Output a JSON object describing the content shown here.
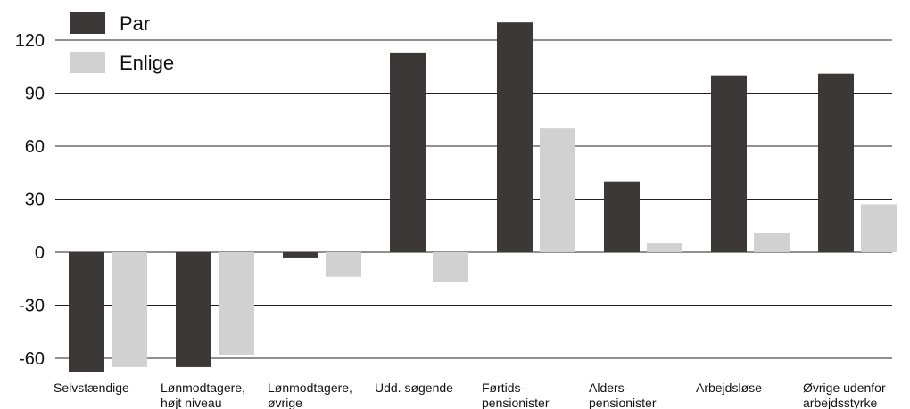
{
  "chart_data": {
    "type": "bar",
    "categories": [
      [
        "Selvstændige"
      ],
      [
        "Lønmodtagere,",
        "højt niveau"
      ],
      [
        "Lønmodtagere,",
        "øvrige"
      ],
      [
        "Udd. søgende"
      ],
      [
        "Førtids-",
        "pensionister"
      ],
      [
        "Alders-",
        "pensionister"
      ],
      [
        "Arbejdsløse"
      ],
      [
        "Øvrige udenfor",
        "arbejdsstyrke"
      ]
    ],
    "series": [
      {
        "name": "Par",
        "color": "#3d3838",
        "values": [
          -68,
          -65,
          -3,
          113,
          130,
          40,
          100,
          101
        ]
      },
      {
        "name": "Enlige",
        "color": "#d1d1d1",
        "values": [
          -65,
          -58,
          -14,
          -17,
          70,
          5,
          11,
          27
        ]
      }
    ],
    "yticks": [
      120,
      90,
      60,
      30,
      0,
      -30,
      -60
    ],
    "ylim": [
      -70,
      130
    ],
    "grid": true,
    "legend_position": "top-left"
  }
}
